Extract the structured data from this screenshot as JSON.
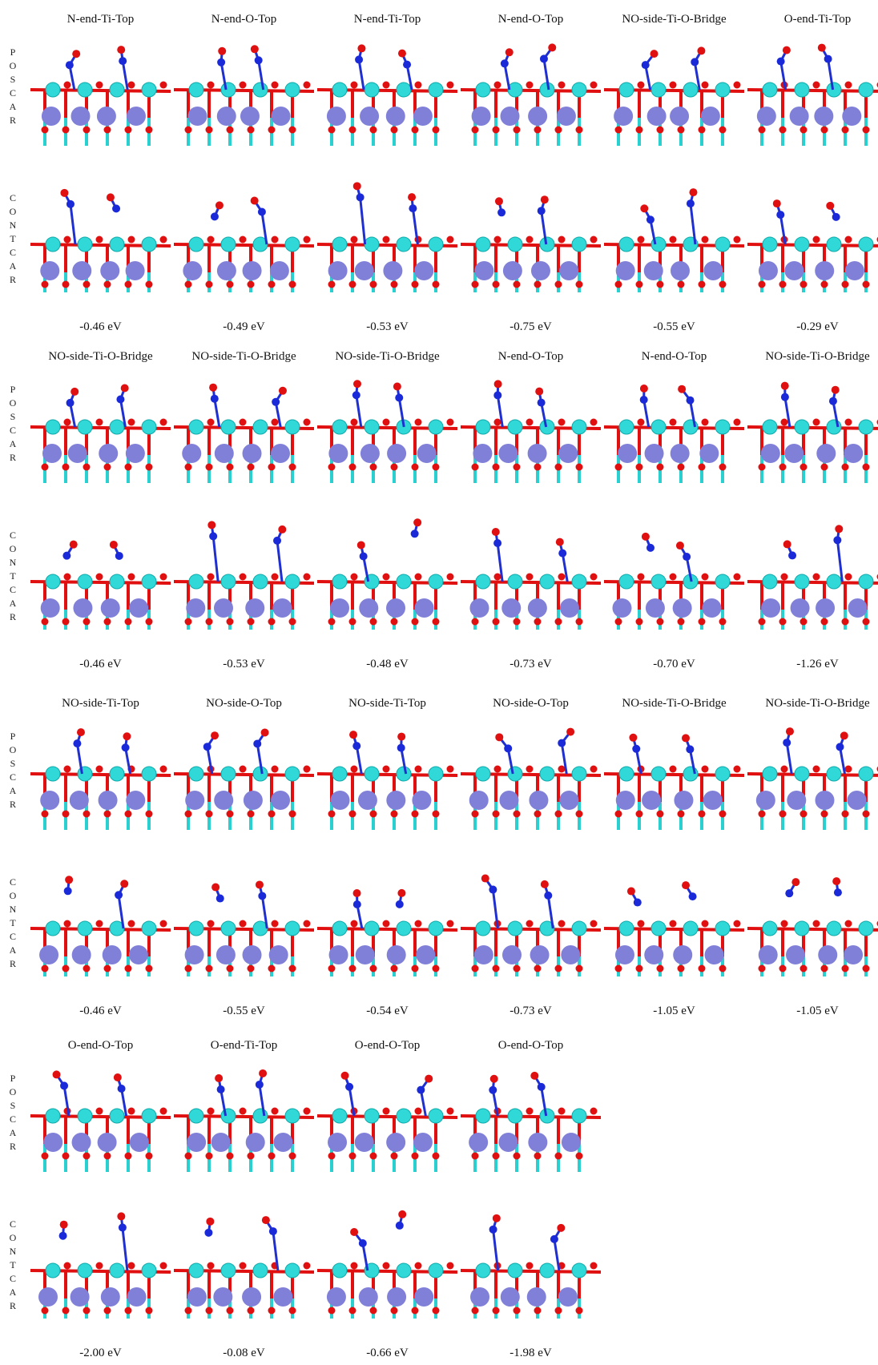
{
  "row_labels": [
    "POSCAR",
    "CONTCAR"
  ],
  "groups": [
    {
      "titles": [
        "N-end-Ti-Top",
        "N-end-O-Top",
        "N-end-Ti-Top",
        "N-end-O-Top",
        "NO-side-Ti-O-Bridge",
        "O-end-Ti-Top"
      ],
      "energies": [
        "-0.46 eV",
        "-0.49 eV",
        "-0.53 eV",
        "-0.75 eV",
        "-0.55 eV",
        "-0.29 eV"
      ]
    },
    {
      "titles": [
        "NO-side-Ti-O-Bridge",
        "NO-side-Ti-O-Bridge",
        "NO-side-Ti-O-Bridge",
        "N-end-O-Top",
        "N-end-O-Top",
        "NO-side-Ti-O-Bridge"
      ],
      "energies": [
        "-0.46 eV",
        "-0.53 eV",
        "-0.48 eV",
        "-0.73 eV",
        "-0.70 eV",
        "-1.26 eV"
      ]
    },
    {
      "titles": [
        "NO-side-Ti-Top",
        "NO-side-O-Top",
        "NO-side-Ti-Top",
        "NO-side-O-Top",
        "NO-side-Ti-O-Bridge",
        "NO-side-Ti-O-Bridge"
      ],
      "energies": [
        "-0.46 eV",
        "-0.55 eV",
        "-0.54 eV",
        "-0.73 eV",
        "-1.05 eV",
        "-1.05 eV"
      ]
    },
    {
      "titles": [
        "O-end-O-Top",
        "O-end-Ti-Top",
        "O-end-O-Top",
        "O-end-O-Top"
      ],
      "energies": [
        "-2.00 eV",
        "-0.08 eV",
        "-0.66 eV",
        "-1.98 eV"
      ]
    }
  ]
}
